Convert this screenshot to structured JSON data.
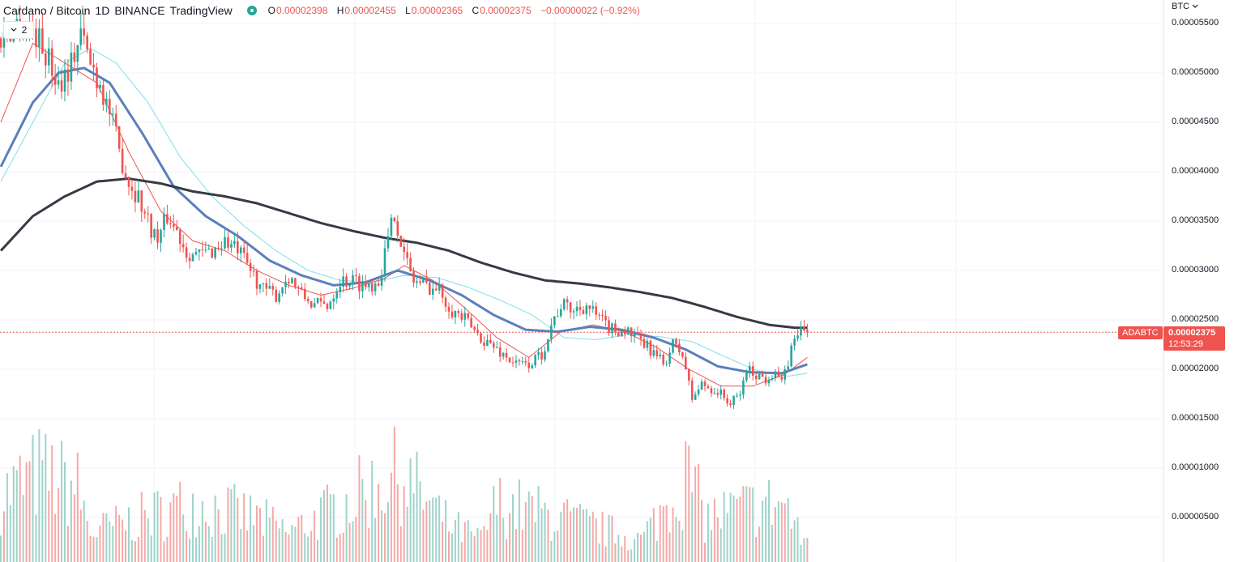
{
  "header": {
    "symbol_title": "Cardano / Bitcoin",
    "interval": "1D",
    "exchange": "BINANCE",
    "provider": "TradingView",
    "ohlc": {
      "o_label": "O",
      "o_value": "0.00002398",
      "h_label": "H",
      "h_value": "0.00002455",
      "l_label": "L",
      "l_value": "0.00002365",
      "c_label": "C",
      "c_value": "0.00002375",
      "change": "−0.00000022 (−0.92%)"
    },
    "collapse_count": "2",
    "collapse_icon": "chevron-down-icon",
    "status_dot_color": "#26a69a"
  },
  "price_axis": {
    "currency": "BTC",
    "currency_icon": "chevron-down-icon",
    "labels": [
      "0.00005500",
      "0.00005000",
      "0.00004500",
      "0.00004000",
      "0.00003500",
      "0.00003000",
      "0.00002500",
      "0.00002000",
      "0.00001500",
      "0.00001000",
      "0.00000500"
    ]
  },
  "last_price": {
    "symbol": "ADABTC",
    "price": "0.00002375",
    "countdown": "12:53:29",
    "color": "#ef5350"
  },
  "colors": {
    "up": "#26a69a",
    "down": "#ef5350",
    "ma_fast": "#ef5350",
    "ma_mid": "#5b7fbd",
    "ma_light": "#80deea",
    "ma_slow": "#363a45",
    "volume_up": "#9fd3ca",
    "volume_down": "#f4a9a7"
  },
  "chart_data": {
    "type": "candlestick",
    "title": "Cardano / Bitcoin",
    "interval": "1D",
    "y_unit": "BTC",
    "ylim": [
      7e-07,
      5.62e-05
    ],
    "grid": true,
    "price_anchors": [
      [
        0,
        5.35e-05
      ],
      [
        5,
        5.5e-05
      ],
      [
        10,
        5.45e-05
      ],
      [
        14,
        5.2e-05
      ],
      [
        18,
        4.9e-05
      ],
      [
        22,
        5.1e-05
      ],
      [
        25,
        5.4e-05
      ],
      [
        28,
        5.1e-05
      ],
      [
        31,
        4.9e-05
      ],
      [
        34,
        4.6e-05
      ],
      [
        37,
        4.2e-05
      ],
      [
        40,
        3.9e-05
      ],
      [
        43,
        3.75e-05
      ],
      [
        46,
        3.5e-05
      ],
      [
        49,
        3.3e-05
      ],
      [
        52,
        3.55e-05
      ],
      [
        55,
        3.4e-05
      ],
      [
        58,
        3.2e-05
      ],
      [
        62,
        3.15e-05
      ],
      [
        66,
        3.2e-05
      ],
      [
        70,
        3.3e-05
      ],
      [
        74,
        3.2e-05
      ],
      [
        78,
        3e-05
      ],
      [
        82,
        2.8e-05
      ],
      [
        86,
        2.75e-05
      ],
      [
        90,
        2.95e-05
      ],
      [
        94,
        2.75e-05
      ],
      [
        98,
        2.65e-05
      ],
      [
        102,
        2.65e-05
      ],
      [
        106,
        2.9e-05
      ],
      [
        110,
        2.9e-05
      ],
      [
        114,
        2.85e-05
      ],
      [
        118,
        2.9e-05
      ],
      [
        121,
        3.3e-05
      ],
      [
        123,
        3.6e-05
      ],
      [
        126,
        3.15e-05
      ],
      [
        129,
        2.9e-05
      ],
      [
        133,
        2.85e-05
      ],
      [
        137,
        2.8e-05
      ],
      [
        141,
        2.6e-05
      ],
      [
        145,
        2.5e-05
      ],
      [
        149,
        2.35e-05
      ],
      [
        153,
        2.25e-05
      ],
      [
        157,
        2.15e-05
      ],
      [
        161,
        2.05e-05
      ],
      [
        165,
        2.05e-05
      ],
      [
        169,
        2.15e-05
      ],
      [
        172,
        2.45e-05
      ],
      [
        175,
        2.65e-05
      ],
      [
        179,
        2.6e-05
      ],
      [
        183,
        2.65e-05
      ],
      [
        187,
        2.5e-05
      ],
      [
        191,
        2.4e-05
      ],
      [
        195,
        2.4e-05
      ],
      [
        199,
        2.3e-05
      ],
      [
        203,
        2.2e-05
      ],
      [
        207,
        2.05e-05
      ],
      [
        210,
        2.25e-05
      ],
      [
        213,
        2.15e-05
      ],
      [
        216,
        1.7e-05
      ],
      [
        219,
        1.85e-05
      ],
      [
        222,
        1.8e-05
      ],
      [
        225,
        1.75e-05
      ],
      [
        228,
        1.65e-05
      ],
      [
        231,
        1.75e-05
      ],
      [
        233,
        2e-05
      ],
      [
        236,
        1.95e-05
      ],
      [
        239,
        1.9e-05
      ],
      [
        242,
        2e-05
      ],
      [
        244,
        1.85e-05
      ],
      [
        245,
        1.95e-05
      ],
      [
        247,
        2.2e-05
      ],
      [
        249,
        2.4e-05
      ],
      [
        251,
        2.38e-05
      ],
      [
        252,
        2.37e-05
      ]
    ],
    "ma_anchors": {
      "fast": [
        [
          0,
          4.5e-05
        ],
        [
          10,
          5.3e-05
        ],
        [
          20,
          5.1e-05
        ],
        [
          30,
          4.9e-05
        ],
        [
          40,
          4.2e-05
        ],
        [
          50,
          3.6e-05
        ],
        [
          60,
          3.3e-05
        ],
        [
          70,
          3.2e-05
        ],
        [
          80,
          3e-05
        ],
        [
          90,
          2.85e-05
        ],
        [
          100,
          2.75e-05
        ],
        [
          110,
          2.82e-05
        ],
        [
          120,
          2.92e-05
        ],
        [
          126,
          3.05e-05
        ],
        [
          135,
          2.9e-05
        ],
        [
          145,
          2.62e-05
        ],
        [
          155,
          2.32e-05
        ],
        [
          165,
          2.12e-05
        ],
        [
          175,
          2.38e-05
        ],
        [
          185,
          2.45e-05
        ],
        [
          195,
          2.38e-05
        ],
        [
          205,
          2.22e-05
        ],
        [
          215,
          2e-05
        ],
        [
          225,
          1.83e-05
        ],
        [
          235,
          1.83e-05
        ],
        [
          245,
          1.95e-05
        ],
        [
          252,
          2.12e-05
        ]
      ],
      "mid": [
        [
          0,
          4.05e-05
        ],
        [
          10,
          4.7e-05
        ],
        [
          18,
          5e-05
        ],
        [
          26,
          5.05e-05
        ],
        [
          34,
          4.9e-05
        ],
        [
          44,
          4.4e-05
        ],
        [
          54,
          3.85e-05
        ],
        [
          64,
          3.55e-05
        ],
        [
          74,
          3.35e-05
        ],
        [
          84,
          3.1e-05
        ],
        [
          94,
          2.95e-05
        ],
        [
          104,
          2.85e-05
        ],
        [
          114,
          2.88e-05
        ],
        [
          124,
          3e-05
        ],
        [
          134,
          2.9e-05
        ],
        [
          144,
          2.75e-05
        ],
        [
          154,
          2.55e-05
        ],
        [
          164,
          2.4e-05
        ],
        [
          174,
          2.38e-05
        ],
        [
          184,
          2.43e-05
        ],
        [
          194,
          2.4e-05
        ],
        [
          204,
          2.32e-05
        ],
        [
          214,
          2.2e-05
        ],
        [
          224,
          2.03e-05
        ],
        [
          234,
          1.97e-05
        ],
        [
          244,
          1.96e-05
        ],
        [
          252,
          2.05e-05
        ]
      ],
      "light": [
        [
          0,
          3.9e-05
        ],
        [
          10,
          4.5e-05
        ],
        [
          20,
          5.1e-05
        ],
        [
          28,
          5.25e-05
        ],
        [
          36,
          5.1e-05
        ],
        [
          46,
          4.7e-05
        ],
        [
          56,
          4.15e-05
        ],
        [
          66,
          3.75e-05
        ],
        [
          76,
          3.45e-05
        ],
        [
          86,
          3.2e-05
        ],
        [
          96,
          3e-05
        ],
        [
          106,
          2.9e-05
        ],
        [
          116,
          2.88e-05
        ],
        [
          126,
          2.95e-05
        ],
        [
          136,
          2.93e-05
        ],
        [
          146,
          2.83e-05
        ],
        [
          156,
          2.7e-05
        ],
        [
          166,
          2.55e-05
        ],
        [
          176,
          2.32e-05
        ],
        [
          186,
          2.3e-05
        ],
        [
          196,
          2.35e-05
        ],
        [
          206,
          2.33e-05
        ],
        [
          216,
          2.28e-05
        ],
        [
          226,
          2.13e-05
        ],
        [
          236,
          1.99e-05
        ],
        [
          246,
          1.93e-05
        ],
        [
          252,
          1.96e-05
        ]
      ],
      "slow": [
        [
          0,
          3.2e-05
        ],
        [
          10,
          3.55e-05
        ],
        [
          20,
          3.75e-05
        ],
        [
          30,
          3.9e-05
        ],
        [
          40,
          3.93e-05
        ],
        [
          50,
          3.88e-05
        ],
        [
          60,
          3.8e-05
        ],
        [
          70,
          3.75e-05
        ],
        [
          80,
          3.68e-05
        ],
        [
          90,
          3.58e-05
        ],
        [
          100,
          3.48e-05
        ],
        [
          110,
          3.4e-05
        ],
        [
          120,
          3.33e-05
        ],
        [
          130,
          3.28e-05
        ],
        [
          140,
          3.2e-05
        ],
        [
          150,
          3.08e-05
        ],
        [
          160,
          2.98e-05
        ],
        [
          170,
          2.9e-05
        ],
        [
          180,
          2.87e-05
        ],
        [
          190,
          2.83e-05
        ],
        [
          200,
          2.78e-05
        ],
        [
          210,
          2.72e-05
        ],
        [
          220,
          2.63e-05
        ],
        [
          230,
          2.53e-05
        ],
        [
          240,
          2.45e-05
        ],
        [
          248,
          2.42e-05
        ],
        [
          252,
          2.42e-05
        ]
      ]
    },
    "volume_peaks": [
      [
        0,
        0.9
      ],
      [
        12,
        1.2
      ],
      [
        24,
        1.0
      ],
      [
        28,
        0.4
      ],
      [
        60,
        0.8
      ],
      [
        80,
        0.6
      ],
      [
        90,
        0.4
      ],
      [
        120,
        1.1
      ],
      [
        125,
        1.2
      ],
      [
        140,
        0.5
      ],
      [
        150,
        0.3
      ],
      [
        155,
        0.8
      ],
      [
        175,
        0.6
      ],
      [
        200,
        0.3
      ],
      [
        215,
        1.2
      ],
      [
        220,
        0.6
      ],
      [
        235,
        0.75
      ],
      [
        245,
        0.8
      ],
      [
        250,
        0.3
      ]
    ],
    "last": 2.375e-05
  }
}
